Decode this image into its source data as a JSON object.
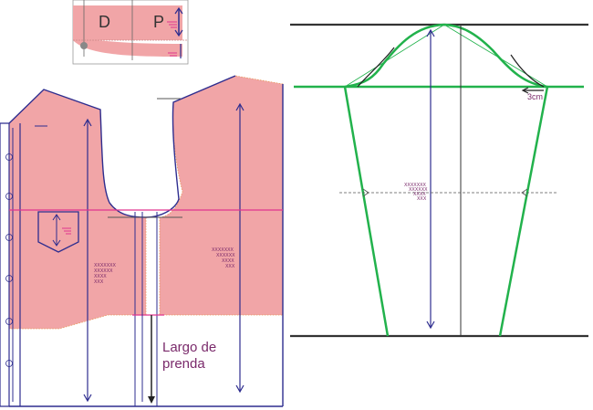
{
  "collar": {
    "label_d": "D",
    "label_p": "P"
  },
  "bodice": {
    "pocket_marks": [
      "XXXXXXX",
      "XXXXXX",
      "XXXX",
      "XXX"
    ],
    "back_marks": [
      "XXXXXXX",
      "XXXXXX",
      "XXXX",
      "XXX"
    ],
    "garment_length_label_line1": "Largo de",
    "garment_length_label_line2": "prenda"
  },
  "sleeve": {
    "ease_label": "3cm",
    "center_marks": [
      "XXXXXXX",
      "XXXXXX",
      "XXXX",
      "XXX"
    ]
  },
  "colors": {
    "fill_pink": "#f1a5a7",
    "line_navy": "#2e2d8f",
    "line_magenta": "#e0358f",
    "line_green": "#22b24c",
    "line_dark": "#333333",
    "text_purple": "#7a2a6b"
  }
}
